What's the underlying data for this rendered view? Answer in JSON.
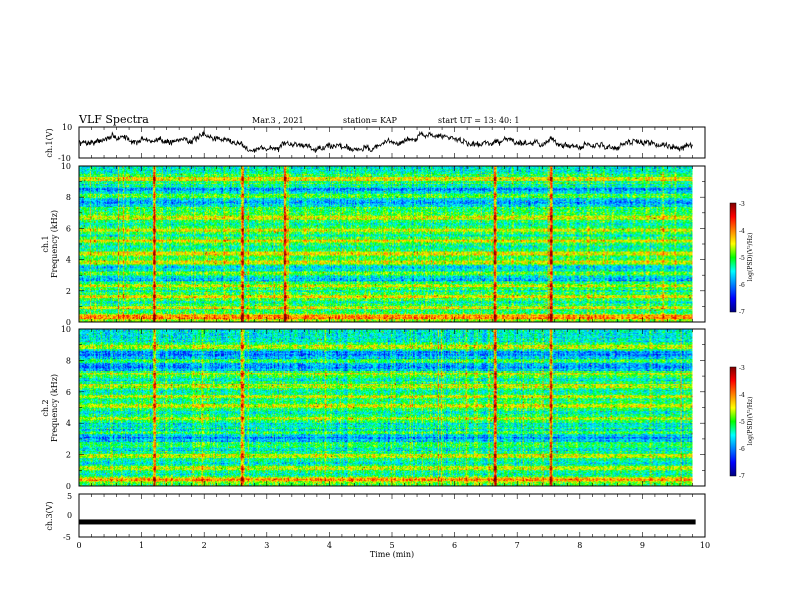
{
  "header": {
    "title": "VLF Spectra",
    "date": "Mar.3  , 2021",
    "station": "station= KAP",
    "start": "start  UT  =   13: 40: 1"
  },
  "chart_data": [
    {
      "type": "line",
      "ylabel": "ch.1(V)",
      "ylim": [
        -10,
        10
      ],
      "yticks": [
        "10",
        "-10"
      ],
      "xlim": [
        0,
        10
      ],
      "xlabel": "",
      "color": "#000000"
    },
    {
      "type": "heatmap",
      "ylabel": "ch.1\nFrequency (kHz)",
      "ylabel_lines": [
        "ch.1",
        "Frequency (kHz)"
      ],
      "ylim": [
        0,
        10
      ],
      "yticks": [
        "0",
        "2",
        "4",
        "6",
        "8",
        "10"
      ],
      "xlim": [
        0,
        10
      ],
      "data_end_min": 9.8,
      "colorbar": {
        "label": "log(PSD)(V²/Hz)",
        "range": [
          -7,
          -3
        ],
        "ticks": [
          "-3",
          "-4",
          "-5",
          "-6",
          "-7"
        ],
        "colors": [
          "#00007f",
          "#0000ff",
          "#00ffff",
          "#00ff00",
          "#ffff00",
          "#ff0000",
          "#7f0000"
        ]
      },
      "features": {
        "background_level": -5.4,
        "strong_vertical_events_min": [
          6.65,
          7.55,
          1.2,
          2.6,
          3.3
        ],
        "horizontal_bands_khz": [
          0.3,
          0.9,
          1.6,
          2.3,
          3.1,
          3.8,
          4.4,
          5.2,
          5.9,
          6.7,
          7.3,
          8.1,
          9.2
        ]
      }
    },
    {
      "type": "heatmap",
      "ylabel": "ch.2\nFrequency (kHz)",
      "ylabel_lines": [
        "ch.2",
        "Frequency (kHz)"
      ],
      "ylim": [
        0,
        10
      ],
      "yticks": [
        "0",
        "2",
        "4",
        "6",
        "8",
        "10"
      ],
      "xlim": [
        0,
        10
      ],
      "data_end_min": 9.8,
      "colorbar": {
        "label": "log(PSD)(V²/Hz)",
        "range": [
          -7,
          -3
        ],
        "ticks": [
          "-3",
          "-4",
          "-5",
          "-6",
          "-7"
        ],
        "colors": [
          "#00007f",
          "#0000ff",
          "#00ffff",
          "#00ff00",
          "#ffff00",
          "#ff0000",
          "#7f0000"
        ]
      },
      "features": {
        "background_level": -5.5,
        "strong_vertical_events_min": [
          6.65,
          7.55,
          1.2,
          2.6
        ],
        "horizontal_bands_khz": [
          0.4,
          1.1,
          1.9,
          2.7,
          3.4,
          4.3,
          5.1,
          5.7,
          6.4,
          7.2,
          8.0,
          8.9
        ]
      }
    },
    {
      "type": "line",
      "ylabel": "ch.3(V)",
      "ylim": [
        -5,
        5
      ],
      "yticks": [
        "5",
        "0",
        "-5"
      ],
      "xlim": [
        0,
        10
      ],
      "xlabel": "Time  (min)",
      "xticks": [
        "0",
        "1",
        "2",
        "3",
        "4",
        "5",
        "6",
        "7",
        "8",
        "9",
        "10"
      ],
      "constant_value": -1.5,
      "color": "#000000"
    }
  ]
}
